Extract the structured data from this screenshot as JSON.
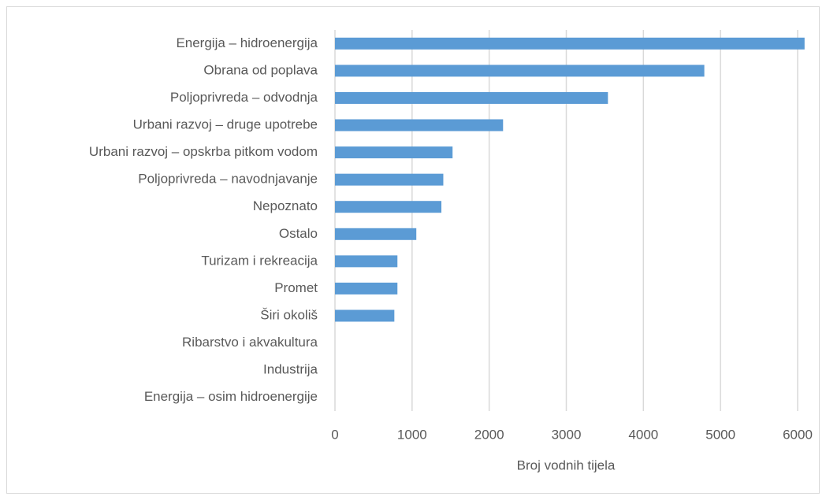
{
  "chart_data": {
    "type": "bar",
    "orientation": "horizontal",
    "x_label": "Broj vodnih tijela",
    "categories": [
      "Energija – hidroenergija",
      "Obrana od poplava",
      "Poljoprivreda – odvodnja",
      "Urbani razvoj – druge upotrebe",
      "Urbani razvoj – opskrba pitkom vodom",
      "Poljoprivreda – navodnjavanje",
      "Nepoznato",
      "Ostalo",
      "Turizam i rekreacija",
      "Promet",
      "Širi okoliš",
      "Ribarstvo i akvakultura",
      "Industrija",
      "Energija – osim hidroenergije"
    ],
    "values": [
      6090,
      4790,
      3540,
      2180,
      1525,
      1405,
      1380,
      1055,
      810,
      810,
      770,
      0,
      0,
      0
    ],
    "color": "#5b9bd5",
    "xlim": [
      0,
      6000
    ],
    "xticks": [
      0,
      1000,
      2000,
      3000,
      4000,
      5000,
      6000
    ],
    "grid": true
  }
}
